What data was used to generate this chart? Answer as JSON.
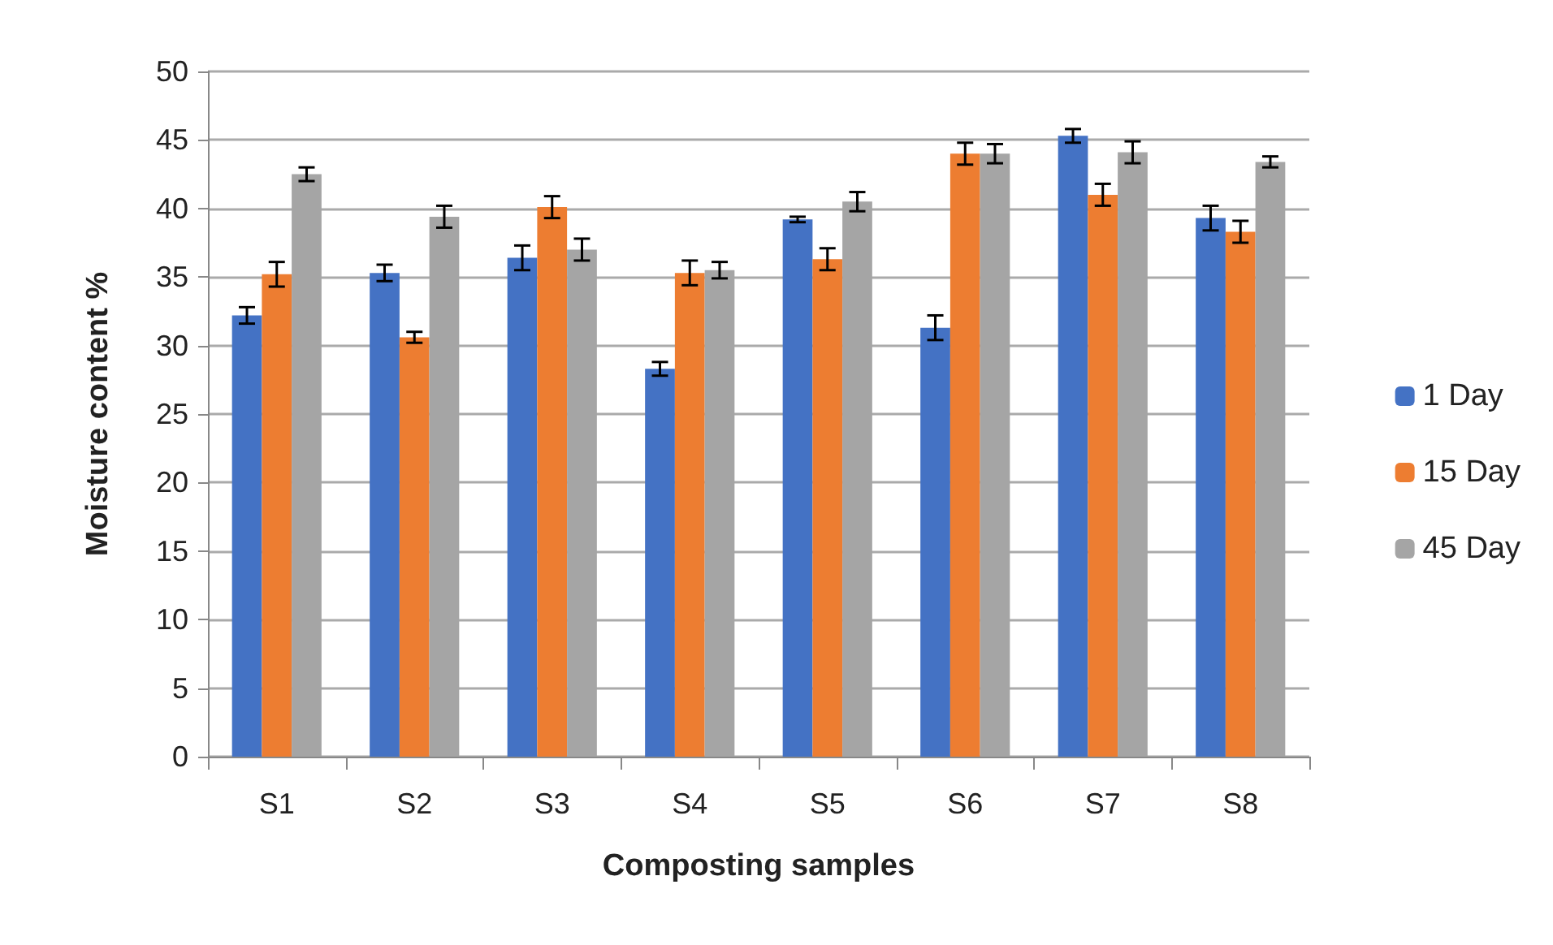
{
  "chart_data": {
    "type": "bar",
    "xlabel": "Composting samples",
    "ylabel": "Moisture content %",
    "categories": [
      "S1",
      "S2",
      "S3",
      "S4",
      "S5",
      "S6",
      "S7",
      "S8"
    ],
    "series": [
      {
        "name": "1 Day",
        "color": "#4472c4",
        "values": [
          32.2,
          35.3,
          36.4,
          28.3,
          39.2,
          31.3,
          45.3,
          39.3
        ],
        "errors": [
          0.6,
          0.6,
          0.9,
          0.5,
          0.2,
          0.9,
          0.5,
          0.9
        ]
      },
      {
        "name": "15 Day",
        "color": "#ed7d31",
        "values": [
          35.2,
          30.6,
          40.1,
          35.3,
          36.3,
          44.0,
          41.0,
          38.3
        ],
        "errors": [
          0.9,
          0.4,
          0.8,
          0.9,
          0.8,
          0.8,
          0.8,
          0.8
        ]
      },
      {
        "name": "45 Day",
        "color": "#a5a5a5",
        "values": [
          42.5,
          39.4,
          37.0,
          35.5,
          40.5,
          44.0,
          44.1,
          43.4
        ],
        "errors": [
          0.5,
          0.8,
          0.8,
          0.6,
          0.7,
          0.7,
          0.8,
          0.4
        ]
      }
    ],
    "ylim": [
      0,
      50
    ],
    "yticks": [
      0,
      5,
      10,
      15,
      20,
      25,
      30,
      35,
      40,
      45,
      50
    ],
    "grid": "y",
    "legend": "right"
  }
}
